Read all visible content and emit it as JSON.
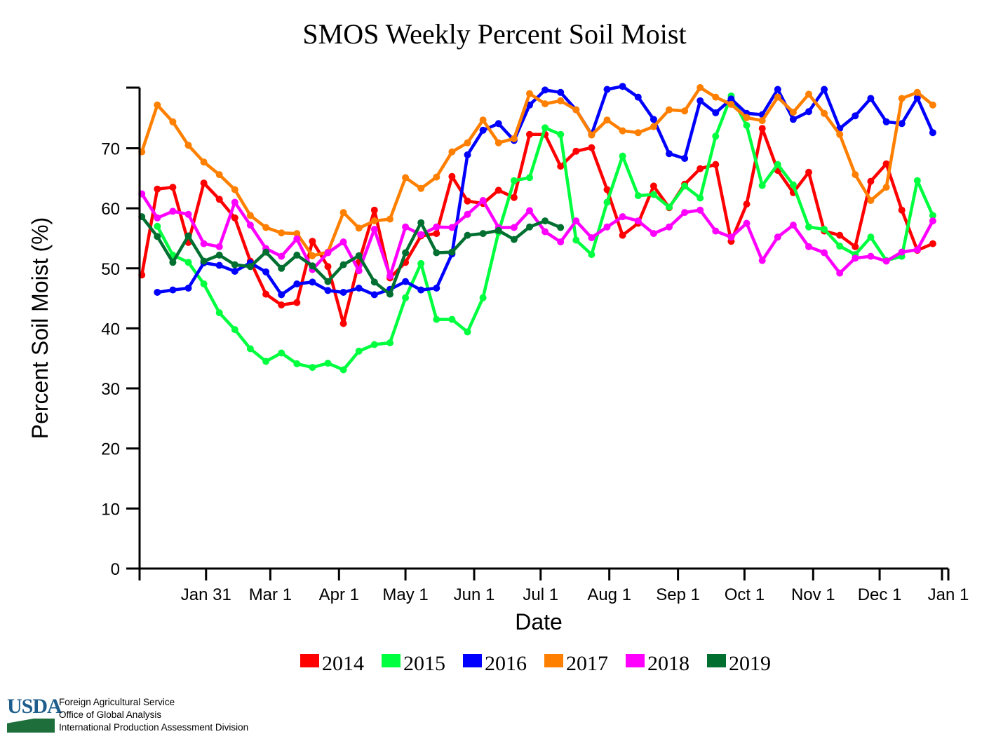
{
  "chart_data": {
    "type": "line",
    "title": "SMOS Weekly Percent Soil Moist",
    "xlabel": "Date",
    "ylabel": "Percent Soil Moist (%)",
    "ylim": [
      0,
      80
    ],
    "yticks": [
      0,
      10,
      20,
      30,
      40,
      50,
      60,
      70
    ],
    "xlim_days": [
      0,
      365
    ],
    "xticks": [
      {
        "label": "Jan 31",
        "day": 30
      },
      {
        "label": "Mar 1",
        "day": 59
      },
      {
        "label": "Apr 1",
        "day": 90
      },
      {
        "label": "May 1",
        "day": 120
      },
      {
        "label": "Jun 1",
        "day": 151
      },
      {
        "label": "Jul 1",
        "day": 181
      },
      {
        "label": "Aug 1",
        "day": 212
      },
      {
        "label": "Sep 1",
        "day": 243
      },
      {
        "label": "Oct 1",
        "day": 273
      },
      {
        "label": "Nov 1",
        "day": 304
      },
      {
        "label": "Dec 1",
        "day": 334
      },
      {
        "label": "Jan 1",
        "day": 365
      }
    ],
    "week_start_day": 1,
    "week_step_days": 7,
    "grid": false,
    "legend": "bottom-center",
    "series": [
      {
        "name": "2014",
        "color": "#ff0000",
        "values": [
          48.9,
          63.2,
          63.5,
          54.3,
          64.2,
          61.5,
          58.4,
          51.2,
          45.7,
          43.9,
          44.3,
          54.5,
          50.3,
          40.8,
          51.0,
          59.7,
          48.4,
          51.0,
          55.4,
          55.8,
          65.3,
          61.2,
          60.8,
          63.0,
          61.8,
          72.3,
          72.3,
          67.0,
          69.5,
          70.1,
          63.1,
          55.5,
          57.5,
          63.7,
          60.1,
          64.0,
          66.6,
          67.3,
          54.5,
          60.7,
          73.3,
          66.3,
          62.6,
          66.0,
          56.2,
          55.5,
          53.6,
          64.5,
          67.4,
          59.7,
          53.0,
          54.1
        ]
      },
      {
        "name": "2015",
        "color": "#00ff3f",
        "values": [
          null,
          57.0,
          52.2,
          51.0,
          47.4,
          42.6,
          39.8,
          36.6,
          34.5,
          35.9,
          34.1,
          33.5,
          34.2,
          33.1,
          36.2,
          37.3,
          37.6,
          45.1,
          50.8,
          41.5,
          41.5,
          39.4,
          45.1,
          56.0,
          64.6,
          65.1,
          73.4,
          72.3,
          54.7,
          52.3,
          61.0,
          68.7,
          62.1,
          62.3,
          60.2,
          63.7,
          61.7,
          72.0,
          78.7,
          73.8,
          63.8,
          67.3,
          63.9,
          56.9,
          56.5,
          53.7,
          52.3,
          55.2,
          51.3,
          52.0,
          64.6,
          58.8
        ]
      },
      {
        "name": "2016",
        "color": "#0000ff",
        "values": [
          null,
          46.0,
          46.4,
          46.7,
          50.9,
          50.5,
          49.5,
          50.9,
          49.4,
          45.6,
          47.4,
          47.7,
          46.3,
          46.0,
          46.7,
          45.6,
          46.5,
          47.8,
          46.4,
          46.7,
          52.4,
          68.9,
          73.0,
          74.1,
          71.3,
          77.2,
          79.7,
          79.3,
          76.4,
          72.3,
          79.8,
          80.3,
          78.5,
          74.8,
          69.1,
          68.3,
          77.9,
          75.9,
          78.2,
          75.8,
          75.6,
          79.8,
          74.8,
          76.1,
          79.8,
          73.3,
          75.4,
          78.3,
          74.4,
          74.1,
          78.4,
          72.6
        ]
      },
      {
        "name": "2017",
        "color": "#ff7f00",
        "values": [
          69.4,
          77.2,
          74.4,
          70.5,
          67.7,
          65.6,
          63.1,
          58.8,
          56.8,
          55.9,
          55.8,
          52.1,
          52.7,
          59.3,
          56.7,
          57.9,
          58.2,
          65.1,
          63.3,
          65.2,
          69.4,
          70.9,
          74.7,
          70.9,
          71.6,
          79.1,
          77.4,
          77.9,
          76.4,
          72.2,
          74.7,
          72.9,
          72.6,
          73.6,
          76.4,
          76.2,
          80.1,
          78.5,
          77.3,
          75.1,
          74.6,
          78.5,
          76.0,
          79.0,
          75.8,
          72.3,
          65.6,
          61.3,
          63.5,
          78.3,
          79.3,
          77.2
        ]
      },
      {
        "name": "2018",
        "color": "#ff00ff",
        "values": [
          62.4,
          58.4,
          59.5,
          59.0,
          54.1,
          53.6,
          61.0,
          57.2,
          53.3,
          52.0,
          54.9,
          49.8,
          52.6,
          54.4,
          49.6,
          56.5,
          48.7,
          56.9,
          55.6,
          56.9,
          56.8,
          59.0,
          61.3,
          56.8,
          56.8,
          59.6,
          56.1,
          54.4,
          57.9,
          55.1,
          56.9,
          58.6,
          57.9,
          55.8,
          56.9,
          59.3,
          59.7,
          56.2,
          55.2,
          57.5,
          51.3,
          55.2,
          57.2,
          53.6,
          52.6,
          49.2,
          51.7,
          52.0,
          51.2,
          52.7,
          53.1,
          57.9
        ]
      },
      {
        "name": "2019",
        "color": "#006f30",
        "values": [
          58.6,
          55.3,
          51.0,
          55.4,
          51.2,
          52.2,
          50.6,
          50.3,
          52.7,
          50.0,
          52.2,
          50.4,
          47.8,
          50.6,
          52.1,
          47.7,
          45.7,
          52.6,
          57.6,
          52.6,
          52.7,
          55.5,
          55.8,
          56.3,
          54.8,
          56.9,
          57.9,
          56.8
        ]
      }
    ]
  },
  "footer": {
    "logo_text": "USDA",
    "lines": [
      "Foreign Agricultural Service",
      "Office of Global Analysis",
      "International Production Assessment Division"
    ]
  }
}
